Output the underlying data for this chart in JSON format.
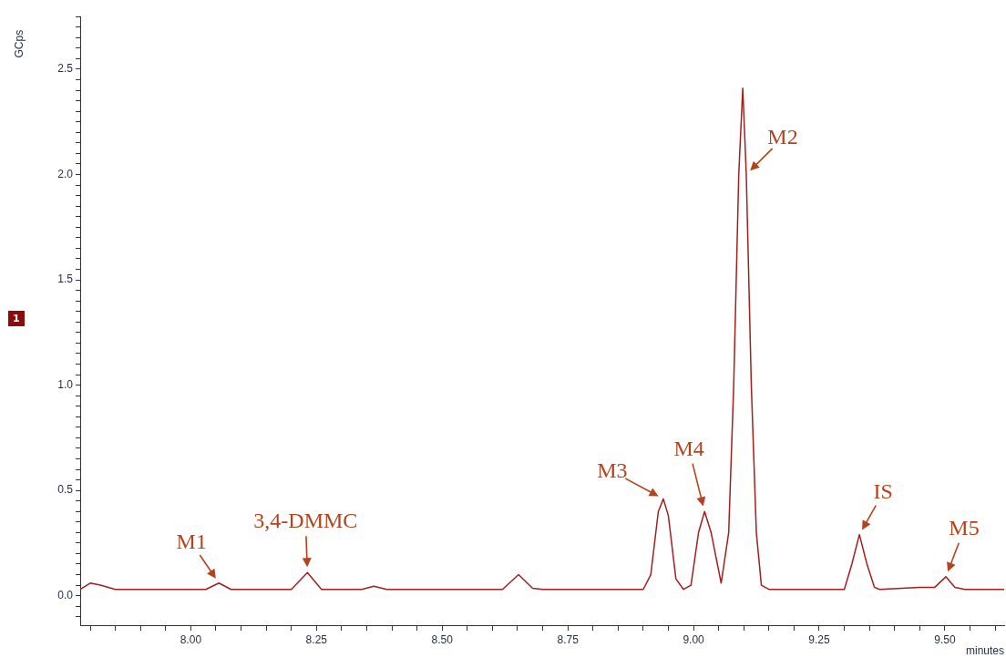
{
  "chart_data": {
    "type": "line",
    "xlabel": "minutes",
    "ylabel": "GCps",
    "xlim": [
      7.78,
      9.618
    ],
    "ylim": [
      -0.14,
      2.75
    ],
    "xticks": [
      {
        "value": 7.8,
        "label": null
      },
      {
        "value": 7.85,
        "label": null
      },
      {
        "value": 7.9,
        "label": null
      },
      {
        "value": 7.95,
        "label": null
      },
      {
        "value": 8,
        "label": "8.00"
      },
      {
        "value": 8.05,
        "label": null
      },
      {
        "value": 8.1,
        "label": null
      },
      {
        "value": 8.15,
        "label": null
      },
      {
        "value": 8.2,
        "label": null
      },
      {
        "value": 8.25,
        "label": "8.25"
      },
      {
        "value": 8.3,
        "label": null
      },
      {
        "value": 8.35,
        "label": null
      },
      {
        "value": 8.4,
        "label": null
      },
      {
        "value": 8.45,
        "label": null
      },
      {
        "value": 8.5,
        "label": "8.50"
      },
      {
        "value": 8.55,
        "label": null
      },
      {
        "value": 8.6,
        "label": null
      },
      {
        "value": 8.65,
        "label": null
      },
      {
        "value": 8.7,
        "label": null
      },
      {
        "value": 8.75,
        "label": "8.75"
      },
      {
        "value": 8.8,
        "label": null
      },
      {
        "value": 8.85,
        "label": null
      },
      {
        "value": 8.9,
        "label": null
      },
      {
        "value": 8.95,
        "label": null
      },
      {
        "value": 9,
        "label": "9.00"
      },
      {
        "value": 9.05,
        "label": null
      },
      {
        "value": 9.1,
        "label": null
      },
      {
        "value": 9.15,
        "label": null
      },
      {
        "value": 9.2,
        "label": null
      },
      {
        "value": 9.25,
        "label": "9.25"
      },
      {
        "value": 9.3,
        "label": null
      },
      {
        "value": 9.35,
        "label": null
      },
      {
        "value": 9.4,
        "label": null
      },
      {
        "value": 9.45,
        "label": null
      },
      {
        "value": 9.5,
        "label": "9.50"
      },
      {
        "value": 9.55,
        "label": null
      },
      {
        "value": 9.6,
        "label": null
      }
    ],
    "yticks": [
      {
        "value": -0.1,
        "label": null
      },
      {
        "value": -0.05,
        "label": null
      },
      {
        "value": 0,
        "label": "0.0"
      },
      {
        "value": 0.05,
        "label": null
      },
      {
        "value": 0.1,
        "label": null
      },
      {
        "value": 0.15,
        "label": null
      },
      {
        "value": 0.2,
        "label": null
      },
      {
        "value": 0.25,
        "label": null
      },
      {
        "value": 0.3,
        "label": null
      },
      {
        "value": 0.35,
        "label": null
      },
      {
        "value": 0.4,
        "label": null
      },
      {
        "value": 0.45,
        "label": null
      },
      {
        "value": 0.5,
        "label": "0.5"
      },
      {
        "value": 0.55,
        "label": null
      },
      {
        "value": 0.6,
        "label": null
      },
      {
        "value": 0.65,
        "label": null
      },
      {
        "value": 0.7,
        "label": null
      },
      {
        "value": 0.75,
        "label": null
      },
      {
        "value": 0.8,
        "label": null
      },
      {
        "value": 0.85,
        "label": null
      },
      {
        "value": 0.9,
        "label": null
      },
      {
        "value": 0.95,
        "label": null
      },
      {
        "value": 1,
        "label": "1.0"
      },
      {
        "value": 1.05,
        "label": null
      },
      {
        "value": 1.1,
        "label": null
      },
      {
        "value": 1.15,
        "label": null
      },
      {
        "value": 1.2,
        "label": null
      },
      {
        "value": 1.25,
        "label": null
      },
      {
        "value": 1.3,
        "label": null
      },
      {
        "value": 1.35,
        "label": null
      },
      {
        "value": 1.4,
        "label": null
      },
      {
        "value": 1.45,
        "label": null
      },
      {
        "value": 1.5,
        "label": "1.5"
      },
      {
        "value": 1.55,
        "label": null
      },
      {
        "value": 1.6,
        "label": null
      },
      {
        "value": 1.65,
        "label": null
      },
      {
        "value": 1.7,
        "label": null
      },
      {
        "value": 1.75,
        "label": null
      },
      {
        "value": 1.8,
        "label": null
      },
      {
        "value": 1.85,
        "label": null
      },
      {
        "value": 1.9,
        "label": null
      },
      {
        "value": 1.95,
        "label": null
      },
      {
        "value": 2,
        "label": "2.0"
      },
      {
        "value": 2.05,
        "label": null
      },
      {
        "value": 2.1,
        "label": null
      },
      {
        "value": 2.15,
        "label": null
      },
      {
        "value": 2.2,
        "label": null
      },
      {
        "value": 2.25,
        "label": null
      },
      {
        "value": 2.3,
        "label": null
      },
      {
        "value": 2.35,
        "label": null
      },
      {
        "value": 2.4,
        "label": null
      },
      {
        "value": 2.45,
        "label": null
      },
      {
        "value": 2.5,
        "label": "2.5"
      },
      {
        "value": 2.55,
        "label": null
      },
      {
        "value": 2.6,
        "label": null
      },
      {
        "value": 2.65,
        "label": null
      },
      {
        "value": 2.7,
        "label": null
      },
      {
        "value": 2.75,
        "label": null
      }
    ],
    "x": [
      7.78,
      7.8,
      7.82,
      7.85,
      8.03,
      8.056,
      8.08,
      8.2,
      8.232,
      8.26,
      8.34,
      8.364,
      8.39,
      8.62,
      8.652,
      8.68,
      8.7,
      8.9,
      8.915,
      8.93,
      8.94,
      8.95,
      8.965,
      8.98,
      8.995,
      9.01,
      9.022,
      9.035,
      9.055,
      9.07,
      9.08,
      9.09,
      9.098,
      9.105,
      9.115,
      9.125,
      9.135,
      9.15,
      9.3,
      9.315,
      9.33,
      9.345,
      9.36,
      9.37,
      9.45,
      9.48,
      9.502,
      9.52,
      9.54,
      9.618
    ],
    "series": [
      {
        "color": "#a31f1f",
        "values": [
          0.03,
          0.06,
          0.05,
          0.03,
          0.03,
          0.06,
          0.03,
          0.03,
          0.11,
          0.03,
          0.03,
          0.045,
          0.03,
          0.03,
          0.1,
          0.035,
          0.03,
          0.03,
          0.1,
          0.4,
          0.46,
          0.38,
          0.08,
          0.03,
          0.05,
          0.3,
          0.4,
          0.3,
          0.06,
          0.3,
          1.0,
          2.0,
          2.41,
          2.0,
          1.0,
          0.3,
          0.05,
          0.03,
          0.03,
          0.15,
          0.29,
          0.15,
          0.04,
          0.03,
          0.04,
          0.04,
          0.09,
          0.04,
          0.03,
          0.03
        ]
      }
    ],
    "annotations": [
      "1",
      {
        "text": "M1",
        "x": 8.056,
        "y": 0.06
      },
      {
        "text": "3,4-DMMC",
        "x": 8.232,
        "y": 0.11
      },
      {
        "text": "M3",
        "x": 8.94,
        "y": 0.46
      },
      {
        "text": "M4",
        "x": 9.022,
        "y": 0.4
      },
      {
        "text": "M2",
        "x": 9.105,
        "y": 2.0
      },
      {
        "text": "IS",
        "x": 9.33,
        "y": 0.29
      },
      {
        "text": "M5",
        "x": 9.502,
        "y": 0.09
      }
    ],
    "grid": false,
    "legend": false,
    "marker": "none",
    "line_style": "solid"
  }
}
